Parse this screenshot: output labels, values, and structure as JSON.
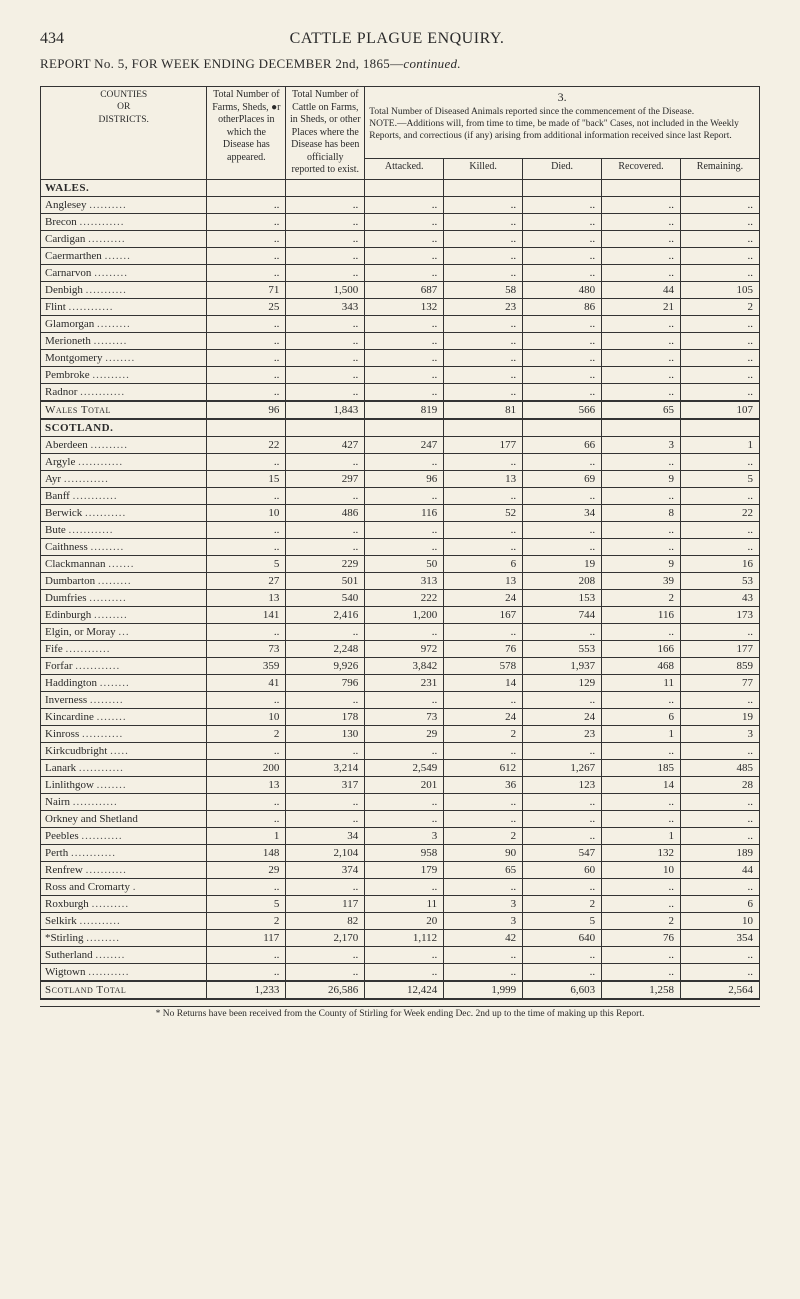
{
  "page_number": "434",
  "page_title": "CATTLE PLAGUE ENQUIRY.",
  "report_line_prefix": "REPORT No. 5, FOR WEEK ENDING DECEMBER 2nd, 1865—",
  "report_line_suffix": "continued.",
  "headers": {
    "counties": "COUNTIES\nOR\nDISTRICTS.",
    "total_farms": "Total Number of Farms, Sheds, ●r otherPlaces in which the Disease has appeared.",
    "total_cattle": "Total Number of Cattle on Farms, in Sheds, or other Places where the Disease has been officially reported to exist.",
    "note_num": "3.",
    "note": "Total Number of Diseased Animals reported since the commencement of the Disease.",
    "note2": "NOTE.—Additions will, from time to time, be made of \"back\" Cases, not included in the Weekly Reports, and correctious (if any) arising from additional information received since last Report.",
    "attacked": "Attacked.",
    "killed": "Killed.",
    "died": "Died.",
    "recovered": "Recovered.",
    "remaining": "Remaining."
  },
  "sections": [
    {
      "title": "WALES.",
      "rows": [
        {
          "name": "Anglesey",
          "v": [
            "..",
            "..",
            "..",
            "..",
            "..",
            "..",
            ".."
          ]
        },
        {
          "name": "Brecon",
          "v": [
            "..",
            "..",
            "..",
            "..",
            "..",
            "..",
            ".."
          ]
        },
        {
          "name": "Cardigan",
          "v": [
            "..",
            "..",
            "..",
            "..",
            "..",
            "..",
            ".."
          ]
        },
        {
          "name": "Caermarthen",
          "v": [
            "..",
            "..",
            "..",
            "..",
            "..",
            "..",
            ".."
          ]
        },
        {
          "name": "Carnarvon",
          "v": [
            "..",
            "..",
            "..",
            "..",
            "..",
            "..",
            ".."
          ]
        },
        {
          "name": "Denbigh",
          "v": [
            "71",
            "1,500",
            "687",
            "58",
            "480",
            "44",
            "105"
          ]
        },
        {
          "name": "Flint",
          "v": [
            "25",
            "343",
            "132",
            "23",
            "86",
            "21",
            "2"
          ]
        },
        {
          "name": "Glamorgan",
          "v": [
            "..",
            "..",
            "..",
            "..",
            "..",
            "..",
            ".."
          ]
        },
        {
          "name": "Merioneth",
          "v": [
            "..",
            "..",
            "..",
            "..",
            "..",
            "..",
            ".."
          ]
        },
        {
          "name": "Montgomery",
          "v": [
            "..",
            "..",
            "..",
            "..",
            "..",
            "..",
            ".."
          ]
        },
        {
          "name": "Pembroke",
          "v": [
            "..",
            "..",
            "..",
            "..",
            "..",
            "..",
            ".."
          ]
        },
        {
          "name": "Radnor",
          "v": [
            "..",
            "..",
            "..",
            "..",
            "..",
            "..",
            ".."
          ]
        }
      ],
      "total": {
        "name": "Wales Total",
        "v": [
          "96",
          "1,843",
          "819",
          "81",
          "566",
          "65",
          "107"
        ]
      }
    },
    {
      "title": "SCOTLAND.",
      "rows": [
        {
          "name": "Aberdeen",
          "v": [
            "22",
            "427",
            "247",
            "177",
            "66",
            "3",
            "1"
          ]
        },
        {
          "name": "Argyle",
          "v": [
            "..",
            "..",
            "..",
            "..",
            "..",
            "..",
            ".."
          ]
        },
        {
          "name": "Ayr",
          "v": [
            "15",
            "297",
            "96",
            "13",
            "69",
            "9",
            "5"
          ]
        },
        {
          "name": "Banff",
          "v": [
            "..",
            "..",
            "..",
            "..",
            "..",
            "..",
            ".."
          ]
        },
        {
          "name": "Berwick",
          "v": [
            "10",
            "486",
            "116",
            "52",
            "34",
            "8",
            "22"
          ]
        },
        {
          "name": "Bute",
          "v": [
            "..",
            "..",
            "..",
            "..",
            "..",
            "..",
            ".."
          ]
        },
        {
          "name": "Caithness",
          "v": [
            "..",
            "..",
            "..",
            "..",
            "..",
            "..",
            ".."
          ]
        },
        {
          "name": "Clackmannan",
          "v": [
            "5",
            "229",
            "50",
            "6",
            "19",
            "9",
            "16"
          ]
        },
        {
          "name": "Dumbarton",
          "v": [
            "27",
            "501",
            "313",
            "13",
            "208",
            "39",
            "53"
          ]
        },
        {
          "name": "Dumfries",
          "v": [
            "13",
            "540",
            "222",
            "24",
            "153",
            "2",
            "43"
          ]
        },
        {
          "name": "Edinburgh",
          "v": [
            "141",
            "2,416",
            "1,200",
            "167",
            "744",
            "116",
            "173"
          ]
        },
        {
          "name": "Elgin, or Moray",
          "v": [
            "..",
            "..",
            "..",
            "..",
            "..",
            "..",
            ".."
          ]
        },
        {
          "name": "Fife",
          "v": [
            "73",
            "2,248",
            "972",
            "76",
            "553",
            "166",
            "177"
          ]
        },
        {
          "name": "Forfar",
          "v": [
            "359",
            "9,926",
            "3,842",
            "578",
            "1,937",
            "468",
            "859"
          ]
        },
        {
          "name": "Haddington",
          "v": [
            "41",
            "796",
            "231",
            "14",
            "129",
            "11",
            "77"
          ]
        },
        {
          "name": "Inverness",
          "v": [
            "..",
            "..",
            "..",
            "..",
            "..",
            "..",
            ".."
          ]
        },
        {
          "name": "Kincardine",
          "v": [
            "10",
            "178",
            "73",
            "24",
            "24",
            "6",
            "19"
          ]
        },
        {
          "name": "Kinross",
          "v": [
            "2",
            "130",
            "29",
            "2",
            "23",
            "1",
            "3"
          ]
        },
        {
          "name": "Kirkcudbright",
          "v": [
            "..",
            "..",
            "..",
            "..",
            "..",
            "..",
            ".."
          ]
        },
        {
          "name": "Lanark",
          "v": [
            "200",
            "3,214",
            "2,549",
            "612",
            "1,267",
            "185",
            "485"
          ]
        },
        {
          "name": "Linlithgow",
          "v": [
            "13",
            "317",
            "201",
            "36",
            "123",
            "14",
            "28"
          ]
        },
        {
          "name": "Nairn",
          "v": [
            "..",
            "..",
            "..",
            "..",
            "..",
            "..",
            ".."
          ]
        },
        {
          "name": "Orkney and Shetland",
          "v": [
            "..",
            "..",
            "..",
            "..",
            "..",
            "..",
            ".."
          ]
        },
        {
          "name": "Peebles",
          "v": [
            "1",
            "34",
            "3",
            "2",
            "..",
            "1",
            ".."
          ]
        },
        {
          "name": "Perth",
          "v": [
            "148",
            "2,104",
            "958",
            "90",
            "547",
            "132",
            "189"
          ]
        },
        {
          "name": "Renfrew",
          "v": [
            "29",
            "374",
            "179",
            "65",
            "60",
            "10",
            "44"
          ]
        },
        {
          "name": "Ross and Cromarty",
          "v": [
            "..",
            "..",
            "..",
            "..",
            "..",
            "..",
            ".."
          ]
        },
        {
          "name": "Roxburgh",
          "v": [
            "5",
            "117",
            "11",
            "3",
            "2",
            "..",
            "6"
          ]
        },
        {
          "name": "Selkirk",
          "v": [
            "2",
            "82",
            "20",
            "3",
            "5",
            "2",
            "10"
          ]
        },
        {
          "name": "*Stirling",
          "v": [
            "117",
            "2,170",
            "1,112",
            "42",
            "640",
            "76",
            "354"
          ]
        },
        {
          "name": "Sutherland",
          "v": [
            "..",
            "..",
            "..",
            "..",
            "..",
            "..",
            ".."
          ]
        },
        {
          "name": "Wigtown",
          "v": [
            "..",
            "..",
            "..",
            "..",
            "..",
            "..",
            ".."
          ]
        }
      ],
      "total": {
        "name": "Scotland Total",
        "v": [
          "1,233",
          "26,586",
          "12,424",
          "1,999",
          "6,603",
          "1,258",
          "2,564"
        ]
      }
    }
  ],
  "footnote": "* No Returns have been received from the County of Stirling for Week ending Dec. 2nd up to the time of making up this Report."
}
